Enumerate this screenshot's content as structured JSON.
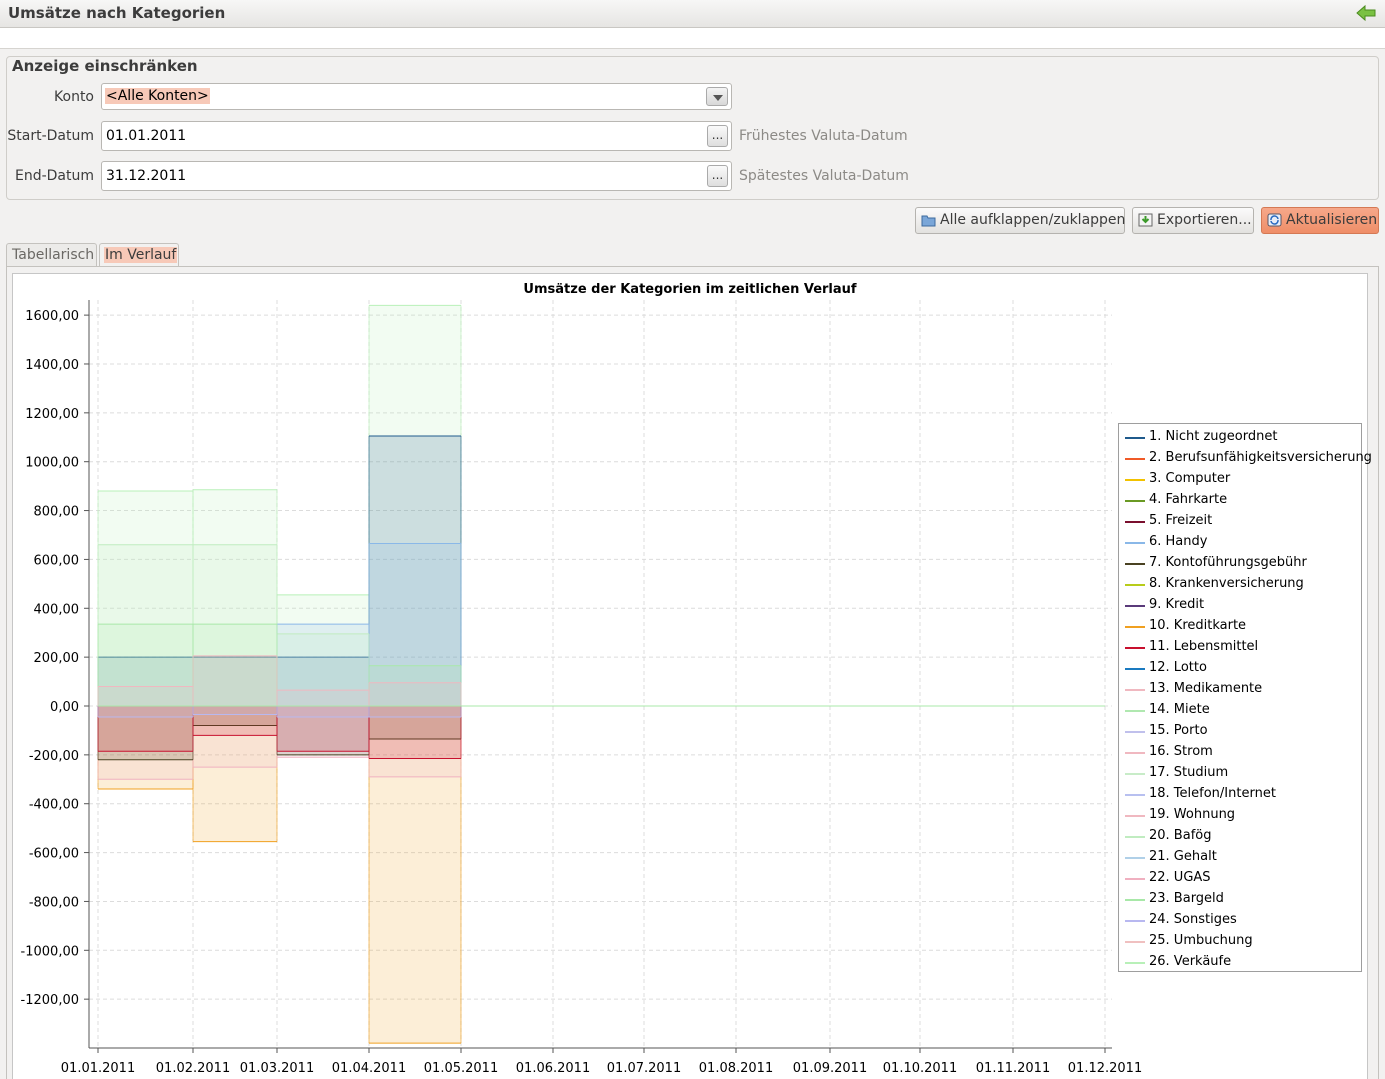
{
  "window": {
    "title": "Umsätze nach Kategorien",
    "back_icon": "green-arrow-left-icon"
  },
  "filter": {
    "title": "Anzeige einschränken",
    "konto_label": "Konto",
    "konto_value": "<Alle Konten>",
    "start_label": "Start-Datum",
    "start_value": "01.01.2011",
    "start_button": "...",
    "start_hint": "Frühestes Valuta-Datum",
    "end_label": "End-Datum",
    "end_value": "31.12.2011",
    "end_button": "...",
    "end_hint": "Spätestes Valuta-Datum"
  },
  "toolbar": {
    "expand_label": "Alle aufklappen/zuklappen",
    "export_label": "Exportieren...",
    "refresh_label": "Aktualisieren"
  },
  "tabs": [
    {
      "label": "Tabellarisch",
      "active": false
    },
    {
      "label": "Im Verlauf",
      "active": true
    }
  ],
  "legend": [
    {
      "label": "1.  Nicht zugeordnet",
      "color": "#1f5a8c"
    },
    {
      "label": "2.  Berufsunfähigkeitsversicherung",
      "color": "#f05a28"
    },
    {
      "label": "3.  Computer",
      "color": "#f2c200"
    },
    {
      "label": "4.  Fahrkarte",
      "color": "#6a9a24"
    },
    {
      "label": "5.  Freizeit",
      "color": "#7a0f2e"
    },
    {
      "label": "6.  Handy",
      "color": "#8ab8e8"
    },
    {
      "label": "7.  Kontoführungsgebühr",
      "color": "#4a4222"
    },
    {
      "label": "8.  Krankenversicherung",
      "color": "#b8cc1a"
    },
    {
      "label": "9.  Kredit",
      "color": "#5a3a7a"
    },
    {
      "label": "10.  Kreditkarte",
      "color": "#f0a020"
    },
    {
      "label": "11.  Lebensmittel",
      "color": "#c8102e"
    },
    {
      "label": "12.  Lotto",
      "color": "#1a7ac0"
    },
    {
      "label": "13.  Medikamente",
      "color": "#f0b8c0"
    },
    {
      "label": "14.  Miete",
      "color": "#b0e8b0"
    },
    {
      "label": "15.  Porto",
      "color": "#c0c0ec"
    },
    {
      "label": "16.  Strom",
      "color": "#f0b8c0"
    },
    {
      "label": "17.  Studium",
      "color": "#c8ecc8"
    },
    {
      "label": "18.  Telefon/Internet",
      "color": "#b8c0f0"
    },
    {
      "label": "19.  Wohnung",
      "color": "#f0b8c0"
    },
    {
      "label": "20.  Bafög",
      "color": "#c0ecc0"
    },
    {
      "label": "21.  Gehalt",
      "color": "#b0d0e8"
    },
    {
      "label": "22.  UGAS",
      "color": "#f0b0c0"
    },
    {
      "label": "23.  Bargeld",
      "color": "#a8e8a8"
    },
    {
      "label": "24.  Sonstiges",
      "color": "#b8b8f0"
    },
    {
      "label": "25.  Umbuchung",
      "color": "#f0c0c0"
    },
    {
      "label": "26.  Verkäufe",
      "color": "#b8f0b8"
    }
  ],
  "chart_data": {
    "type": "area",
    "title": "Umsätze der Kategorien im zeitlichen Verlauf",
    "step": true,
    "ylim": [
      -1400,
      1650
    ],
    "yticks": [
      "1600,00",
      "1400,00",
      "1200,00",
      "1000,00",
      "800,00",
      "600,00",
      "400,00",
      "200,00",
      "0,00",
      "-200,00",
      "-400,00",
      "-600,00",
      "-800,00",
      "-1000,00",
      "-1200,00"
    ],
    "ytick_values": [
      1600,
      1400,
      1200,
      1000,
      800,
      600,
      400,
      200,
      0,
      -200,
      -400,
      -600,
      -800,
      -1000,
      -1200
    ],
    "x": [
      "01.01.2011",
      "01.02.2011",
      "01.03.2011",
      "01.04.2011",
      "01.05.2011",
      "01.06.2011",
      "01.07.2011",
      "01.08.2011",
      "01.09.2011",
      "01.10.2011",
      "01.11.2011",
      "01.12.2011"
    ],
    "grid": true,
    "legend_position": "right",
    "series": [
      {
        "name": "1.  Nicht zugeordnet",
        "color": "#1f5a8c",
        "values": [
          200,
          200,
          200,
          1105,
          0,
          0,
          0,
          0,
          0,
          0,
          0,
          0
        ]
      },
      {
        "name": "6.  Handy",
        "color": "#8ab8e8",
        "values": [
          0,
          0,
          335,
          665,
          0,
          0,
          0,
          0,
          0,
          0,
          0,
          0
        ]
      },
      {
        "name": "20.  Bafög",
        "color": "#c0ecc0",
        "values": [
          660,
          660,
          295,
          0,
          0,
          0,
          0,
          0,
          0,
          0,
          0,
          0
        ]
      },
      {
        "name": "23.  Bargeld",
        "color": "#a8e8a8",
        "values": [
          335,
          335,
          0,
          165,
          0,
          0,
          0,
          0,
          0,
          0,
          0,
          0
        ]
      },
      {
        "name": "26.  Verkäufe",
        "color": "#b8f0b8",
        "values": [
          880,
          885,
          455,
          1640,
          0,
          0,
          0,
          0,
          0,
          0,
          0,
          0
        ]
      },
      {
        "name": "13.  Medikamente",
        "color": "#f0b8c0",
        "values": [
          80,
          205,
          65,
          95,
          0,
          0,
          0,
          0,
          0,
          0,
          0,
          0
        ]
      },
      {
        "name": "7.  Kontoführungsgebühr",
        "color": "#4a4222",
        "values": [
          -220,
          -80,
          -200,
          -135,
          0,
          0,
          0,
          0,
          0,
          0,
          0,
          0
        ]
      },
      {
        "name": "11.  Lebensmittel",
        "color": "#c8102e",
        "values": [
          -185,
          -120,
          -185,
          -215,
          0,
          0,
          0,
          0,
          0,
          0,
          0,
          0
        ]
      },
      {
        "name": "22.  UGAS",
        "color": "#f0b0c0",
        "values": [
          -300,
          -250,
          -210,
          -290,
          0,
          0,
          0,
          0,
          0,
          0,
          0,
          0
        ]
      },
      {
        "name": "10.  Kreditkarte",
        "color": "#f0a020",
        "values": [
          -340,
          -555,
          0,
          -1380,
          0,
          0,
          0,
          0,
          0,
          0,
          0,
          0
        ]
      },
      {
        "name": "24.  Sonstiges",
        "color": "#b8b8f0",
        "values": [
          -45,
          -35,
          -45,
          -45,
          0,
          0,
          0,
          0,
          0,
          0,
          0,
          0
        ]
      }
    ]
  }
}
